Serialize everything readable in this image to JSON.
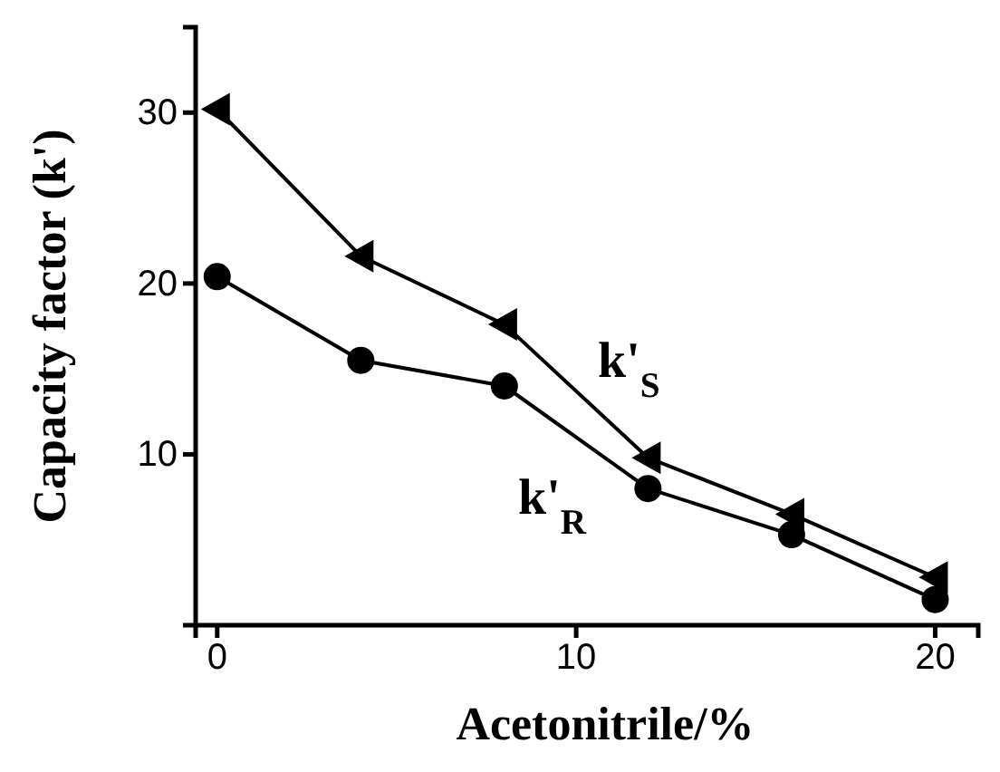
{
  "chart_data": {
    "type": "line",
    "xlabel": "Acetonitrile/%",
    "ylabel": "Capacity factor (k')",
    "x": [
      0,
      4,
      8,
      12,
      16,
      20
    ],
    "series": [
      {
        "name": "k'$_{S}$",
        "color": "#000000",
        "marker": "triangle",
        "values": [
          30.2,
          21.6,
          17.6,
          9.8,
          6.5,
          2.8
        ]
      },
      {
        "name": "k'$_{R}$",
        "color": "#000000",
        "marker": "circle",
        "values": [
          20.4,
          15.5,
          14.0,
          8.0,
          5.3,
          1.5
        ]
      }
    ],
    "xlim": [
      -0.6,
      21.2
    ],
    "ylim": [
      0,
      35
    ],
    "xticks": [
      0,
      10,
      20
    ],
    "yticks": [
      10,
      20,
      30
    ],
    "grid": false,
    "legend": false
  }
}
